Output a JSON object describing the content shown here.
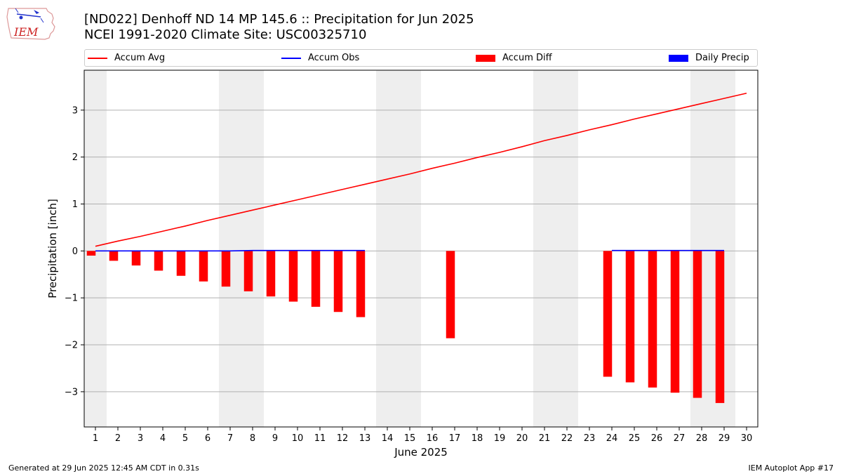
{
  "logo": {
    "text": "IEM"
  },
  "title_line1": "[ND022] Denhoff ND 14 MP 145.6 :: Precipitation for Jun 2025",
  "title_line2": "NCEI 1991-2020 Climate Site: USC00325710",
  "legend": {
    "items": [
      {
        "label": "Accum Avg",
        "kind": "line",
        "color": "#ff0000"
      },
      {
        "label": "Accum Obs",
        "kind": "line",
        "color": "#0000ff"
      },
      {
        "label": "Accum Diff",
        "kind": "bar",
        "color": "#ff0000"
      },
      {
        "label": "Daily Precip",
        "kind": "bar",
        "color": "#0000ff"
      }
    ]
  },
  "footer_left": "Generated at 29 Jun 2025 12:45 AM CDT in 0.31s",
  "footer_right": "IEM Autoplot App #17",
  "chart_data": {
    "type": "line",
    "xlabel": "June 2025",
    "ylabel": "Precipitation [inch]",
    "xlim": [
      0.5,
      30.5
    ],
    "ylim": [
      -3.75,
      3.85
    ],
    "x_ticks": [
      1,
      2,
      3,
      4,
      5,
      6,
      7,
      8,
      9,
      10,
      11,
      12,
      13,
      14,
      15,
      16,
      17,
      18,
      19,
      20,
      21,
      22,
      23,
      24,
      25,
      26,
      27,
      28,
      29,
      30
    ],
    "y_ticks": [
      -3,
      -2,
      -1,
      0,
      1,
      2,
      3
    ],
    "y_tick_labels": [
      "−3",
      "−2",
      "−1",
      "0",
      "1",
      "2",
      "3"
    ],
    "grid": "horizontal",
    "weekend_shading": [
      [
        0.5,
        1.5
      ],
      [
        6.5,
        8.5
      ],
      [
        13.5,
        15.5
      ],
      [
        20.5,
        22.5
      ],
      [
        27.5,
        29.5
      ]
    ],
    "shading_color": "#eeeeee",
    "accum_avg": {
      "name": "Accum Avg",
      "color": "#ff0000",
      "x": [
        1,
        2,
        3,
        4,
        5,
        6,
        7,
        8,
        9,
        10,
        11,
        12,
        13,
        14,
        15,
        16,
        17,
        18,
        19,
        20,
        21,
        22,
        23,
        24,
        25,
        26,
        27,
        28,
        29,
        30
      ],
      "values": [
        0.1,
        0.21,
        0.31,
        0.42,
        0.53,
        0.65,
        0.76,
        0.87,
        0.98,
        1.09,
        1.2,
        1.31,
        1.42,
        1.53,
        1.64,
        1.76,
        1.87,
        1.99,
        2.1,
        2.22,
        2.35,
        2.46,
        2.58,
        2.69,
        2.81,
        2.92,
        3.03,
        3.14,
        3.25,
        3.36
      ]
    },
    "accum_obs": {
      "name": "Accum Obs",
      "color": "#0000ff",
      "segments": [
        {
          "x": [
            1,
            2,
            3,
            4,
            5,
            6,
            7,
            8,
            9,
            10,
            11,
            12,
            13
          ],
          "values": [
            0,
            0,
            0,
            0,
            0,
            0,
            0,
            0.01,
            0.01,
            0.01,
            0.01,
            0.01,
            0.01
          ]
        },
        {
          "x": [
            24,
            25,
            26,
            27,
            28,
            29
          ],
          "values": [
            0.01,
            0.01,
            0.01,
            0.01,
            0.01,
            0.01
          ]
        }
      ]
    },
    "accum_diff": {
      "name": "Accum Diff",
      "color": "#ff0000",
      "x": [
        1,
        2,
        3,
        4,
        5,
        6,
        7,
        8,
        9,
        10,
        11,
        12,
        13,
        17,
        24,
        25,
        26,
        27,
        28,
        29
      ],
      "values": [
        -0.1,
        -0.21,
        -0.31,
        -0.42,
        -0.53,
        -0.65,
        -0.76,
        -0.86,
        -0.97,
        -1.08,
        -1.19,
        -1.3,
        -1.41,
        -1.86,
        -2.68,
        -2.8,
        -2.91,
        -3.02,
        -3.13,
        -3.24
      ]
    },
    "daily_precip": {
      "name": "Daily Precip",
      "color": "#0000ff",
      "x": [],
      "values": []
    }
  }
}
